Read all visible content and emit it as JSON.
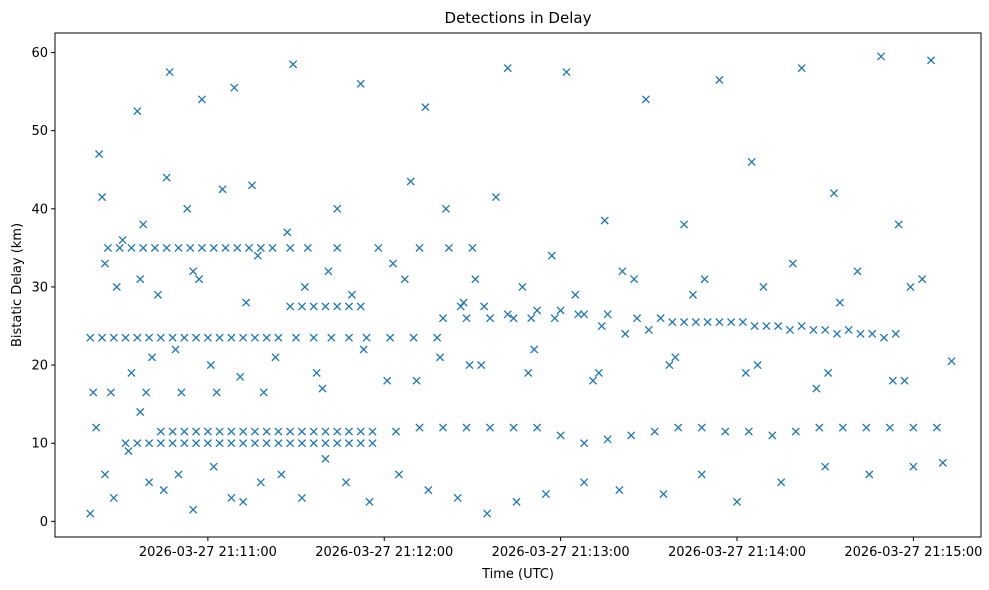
{
  "chart_data": {
    "type": "scatter",
    "title": "Detections in Delay",
    "xlabel": "Time (UTC)",
    "ylabel": "Bistatic Delay (km)",
    "x_axis_type": "time",
    "xlim": [
      "2026-03-27 21:10:08",
      "2026-03-27 21:15:23"
    ],
    "ylim": [
      -2,
      62.5
    ],
    "x_ticks": [
      "2026-03-27 21:11:00",
      "2026-03-27 21:12:00",
      "2026-03-27 21:13:00",
      "2026-03-27 21:14:00",
      "2026-03-27 21:15:00"
    ],
    "y_ticks": [
      0,
      10,
      20,
      30,
      40,
      50,
      60
    ],
    "grid": false,
    "legend": "none",
    "marker": "x",
    "color": "#1f77b4",
    "series": [
      {
        "x": [
          "2026-03-27 21:10:20",
          "2026-03-27 21:10:22",
          "2026-03-27 21:10:25",
          "2026-03-27 21:10:28",
          "2026-03-27 21:10:33",
          "2026-03-27 21:10:37",
          "2026-03-27 21:10:40",
          "2026-03-27 21:10:45",
          "2026-03-27 21:10:50",
          "2026-03-27 21:10:55",
          "2026-03-27 21:11:02",
          "2026-03-27 21:11:08",
          "2026-03-27 21:11:12",
          "2026-03-27 21:11:18",
          "2026-03-27 21:11:25",
          "2026-03-27 21:11:32",
          "2026-03-27 21:11:40",
          "2026-03-27 21:11:47",
          "2026-03-27 21:11:55",
          "2026-03-27 21:12:05",
          "2026-03-27 21:12:15",
          "2026-03-27 21:12:25",
          "2026-03-27 21:12:35",
          "2026-03-27 21:12:45",
          "2026-03-27 21:12:55",
          "2026-03-27 21:13:08",
          "2026-03-27 21:13:20",
          "2026-03-27 21:13:35",
          "2026-03-27 21:13:48",
          "2026-03-27 21:14:00",
          "2026-03-27 21:14:15",
          "2026-03-27 21:14:30",
          "2026-03-27 21:14:45",
          "2026-03-27 21:15:00",
          "2026-03-27 21:15:10",
          "2026-03-27 21:10:23",
          "2026-03-27 21:10:36",
          "2026-03-27 21:10:47",
          "2026-03-27 21:10:58",
          "2026-03-27 21:11:09",
          "2026-03-27 21:11:29",
          "2026-03-27 21:11:52",
          "2026-03-27 21:12:14",
          "2026-03-27 21:12:42",
          "2026-03-27 21:13:02",
          "2026-03-27 21:13:29",
          "2026-03-27 21:13:54",
          "2026-03-27 21:14:22",
          "2026-03-27 21:14:49",
          "2026-03-27 21:15:06",
          "2026-03-27 21:10:24",
          "2026-03-27 21:10:31",
          "2026-03-27 21:10:38",
          "2026-03-27 21:10:46",
          "2026-03-27 21:10:53",
          "2026-03-27 21:11:05",
          "2026-03-27 21:11:15",
          "2026-03-27 21:11:27",
          "2026-03-27 21:11:44",
          "2026-03-27 21:12:09",
          "2026-03-27 21:12:21",
          "2026-03-27 21:12:38",
          "2026-03-27 21:13:15",
          "2026-03-27 21:13:42",
          "2026-03-27 21:14:05",
          "2026-03-27 21:14:33",
          "2026-03-27 21:14:55",
          "2026-03-27 21:10:20",
          "2026-03-27 21:10:24",
          "2026-03-27 21:10:28",
          "2026-03-27 21:10:32",
          "2026-03-27 21:10:36",
          "2026-03-27 21:10:40",
          "2026-03-27 21:10:44",
          "2026-03-27 21:10:48",
          "2026-03-27 21:10:52",
          "2026-03-27 21:10:56",
          "2026-03-27 21:11:00",
          "2026-03-27 21:11:04",
          "2026-03-27 21:11:08",
          "2026-03-27 21:11:12",
          "2026-03-27 21:11:16",
          "2026-03-27 21:11:20",
          "2026-03-27 21:11:24",
          "2026-03-27 21:11:30",
          "2026-03-27 21:11:36",
          "2026-03-27 21:11:42",
          "2026-03-27 21:11:48",
          "2026-03-27 21:11:54",
          "2026-03-27 21:12:02",
          "2026-03-27 21:12:10",
          "2026-03-27 21:12:18",
          "2026-03-27 21:12:26",
          "2026-03-27 21:12:34",
          "2026-03-27 21:12:42",
          "2026-03-27 21:12:50",
          "2026-03-27 21:12:58",
          "2026-03-27 21:13:06",
          "2026-03-27 21:13:14",
          "2026-03-27 21:13:22",
          "2026-03-27 21:13:30",
          "2026-03-27 21:13:38",
          "2026-03-27 21:13:46",
          "2026-03-27 21:13:54",
          "2026-03-27 21:14:02",
          "2026-03-27 21:14:10",
          "2026-03-27 21:14:18",
          "2026-03-27 21:14:26",
          "2026-03-27 21:14:34",
          "2026-03-27 21:14:42",
          "2026-03-27 21:14:50",
          "2026-03-27 21:10:26",
          "2026-03-27 21:10:30",
          "2026-03-27 21:10:34",
          "2026-03-27 21:10:38",
          "2026-03-27 21:10:42",
          "2026-03-27 21:10:46",
          "2026-03-27 21:10:50",
          "2026-03-27 21:10:54",
          "2026-03-27 21:10:58",
          "2026-03-27 21:11:02",
          "2026-03-27 21:11:06",
          "2026-03-27 21:11:10",
          "2026-03-27 21:11:14",
          "2026-03-27 21:11:18",
          "2026-03-27 21:11:22",
          "2026-03-27 21:11:28",
          "2026-03-27 21:11:34",
          "2026-03-27 21:11:44",
          "2026-03-27 21:11:58",
          "2026-03-27 21:12:12",
          "2026-03-27 21:12:22",
          "2026-03-27 21:12:30",
          "2026-03-27 21:11:28",
          "2026-03-27 21:11:32",
          "2026-03-27 21:11:36",
          "2026-03-27 21:11:40",
          "2026-03-27 21:11:44",
          "2026-03-27 21:11:48",
          "2026-03-27 21:11:52",
          "2026-03-27 21:12:20",
          "2026-03-27 21:12:28",
          "2026-03-27 21:12:36",
          "2026-03-27 21:12:44",
          "2026-03-27 21:12:52",
          "2026-03-27 21:13:00",
          "2026-03-27 21:13:08",
          "2026-03-27 21:13:16",
          "2026-03-27 21:13:26",
          "2026-03-27 21:13:34",
          "2026-03-27 21:13:42",
          "2026-03-27 21:13:50",
          "2026-03-27 21:13:58",
          "2026-03-27 21:14:06",
          "2026-03-27 21:14:14",
          "2026-03-27 21:14:22",
          "2026-03-27 21:14:30",
          "2026-03-27 21:14:38",
          "2026-03-27 21:14:46",
          "2026-03-27 21:14:54",
          "2026-03-27 21:10:44",
          "2026-03-27 21:10:48",
          "2026-03-27 21:10:52",
          "2026-03-27 21:10:56",
          "2026-03-27 21:11:00",
          "2026-03-27 21:11:04",
          "2026-03-27 21:11:08",
          "2026-03-27 21:11:12",
          "2026-03-27 21:11:16",
          "2026-03-27 21:11:20",
          "2026-03-27 21:11:24",
          "2026-03-27 21:11:28",
          "2026-03-27 21:11:32",
          "2026-03-27 21:11:36",
          "2026-03-27 21:11:40",
          "2026-03-27 21:11:44",
          "2026-03-27 21:11:48",
          "2026-03-27 21:11:52",
          "2026-03-27 21:11:56",
          "2026-03-27 21:12:04",
          "2026-03-27 21:12:12",
          "2026-03-27 21:12:20",
          "2026-03-27 21:12:28",
          "2026-03-27 21:12:36",
          "2026-03-27 21:12:44",
          "2026-03-27 21:12:52",
          "2026-03-27 21:13:00",
          "2026-03-27 21:13:08",
          "2026-03-27 21:13:16",
          "2026-03-27 21:13:24",
          "2026-03-27 21:13:32",
          "2026-03-27 21:13:40",
          "2026-03-27 21:13:48",
          "2026-03-27 21:13:56",
          "2026-03-27 21:14:04",
          "2026-03-27 21:14:12",
          "2026-03-27 21:14:20",
          "2026-03-27 21:14:28",
          "2026-03-27 21:14:36",
          "2026-03-27 21:14:44",
          "2026-03-27 21:14:52",
          "2026-03-27 21:15:00",
          "2026-03-27 21:15:08",
          "2026-03-27 21:10:32",
          "2026-03-27 21:10:36",
          "2026-03-27 21:10:40",
          "2026-03-27 21:10:44",
          "2026-03-27 21:10:48",
          "2026-03-27 21:10:52",
          "2026-03-27 21:10:56",
          "2026-03-27 21:11:00",
          "2026-03-27 21:11:04",
          "2026-03-27 21:11:08",
          "2026-03-27 21:11:12",
          "2026-03-27 21:11:16",
          "2026-03-27 21:11:20",
          "2026-03-27 21:11:24",
          "2026-03-27 21:11:28",
          "2026-03-27 21:11:32",
          "2026-03-27 21:11:36",
          "2026-03-27 21:11:40",
          "2026-03-27 21:11:44",
          "2026-03-27 21:11:48",
          "2026-03-27 21:11:52",
          "2026-03-27 21:11:56",
          "2026-03-27 21:10:21",
          "2026-03-27 21:10:27",
          "2026-03-27 21:10:39",
          "2026-03-27 21:10:51",
          "2026-03-27 21:11:03",
          "2026-03-27 21:11:19",
          "2026-03-27 21:11:39",
          "2026-03-27 21:12:01",
          "2026-03-27 21:12:19",
          "2026-03-27 21:12:33",
          "2026-03-27 21:12:49",
          "2026-03-27 21:13:11",
          "2026-03-27 21:13:37",
          "2026-03-27 21:14:03",
          "2026-03-27 21:14:27",
          "2026-03-27 21:14:53",
          "2026-03-27 21:15:13",
          "2026-03-27 21:10:29",
          "2026-03-27 21:10:43",
          "2026-03-27 21:10:57",
          "2026-03-27 21:11:13",
          "2026-03-27 21:11:33",
          "2026-03-27 21:11:49",
          "2026-03-27 21:12:07",
          "2026-03-27 21:12:27",
          "2026-03-27 21:12:47",
          "2026-03-27 21:13:05",
          "2026-03-27 21:13:25",
          "2026-03-27 21:13:45",
          "2026-03-27 21:14:09",
          "2026-03-27 21:14:35",
          "2026-03-27 21:14:59",
          "2026-03-27 21:10:34",
          "2026-03-27 21:10:41",
          "2026-03-27 21:10:49",
          "2026-03-27 21:11:01",
          "2026-03-27 21:11:11",
          "2026-03-27 21:11:23",
          "2026-03-27 21:11:37",
          "2026-03-27 21:11:53",
          "2026-03-27 21:12:11",
          "2026-03-27 21:12:29",
          "2026-03-27 21:12:51",
          "2026-03-27 21:13:13",
          "2026-03-27 21:13:39",
          "2026-03-27 21:14:07",
          "2026-03-27 21:14:31",
          "2026-03-27 21:14:57",
          "2026-03-27 21:10:25",
          "2026-03-27 21:10:37",
          "2026-03-27 21:10:55",
          "2026-03-27 21:11:17",
          "2026-03-27 21:11:41",
          "2026-03-27 21:12:03",
          "2026-03-27 21:12:31",
          "2026-03-27 21:12:57",
          "2026-03-27 21:13:21",
          "2026-03-27 21:13:49",
          "2026-03-27 21:14:19",
          "2026-03-27 21:14:41",
          "2026-03-27 21:15:03"
        ],
        "y": [
          1,
          12,
          6,
          3,
          9,
          14,
          5,
          4,
          6,
          1.5,
          7,
          3,
          2.5,
          5,
          6,
          3,
          8,
          5,
          2.5,
          6,
          4,
          3,
          1,
          2.5,
          3.5,
          5,
          4,
          3.5,
          6,
          2.5,
          5,
          7,
          6,
          7,
          7.5,
          47,
          52.5,
          57.5,
          54,
          55.5,
          58.5,
          56,
          53,
          58,
          57.5,
          54,
          56.5,
          58,
          59.5,
          59,
          41.5,
          36,
          38,
          44,
          40,
          42.5,
          43,
          37,
          40,
          43.5,
          40,
          41.5,
          38.5,
          38,
          46,
          42,
          38,
          23.5,
          23.5,
          23.5,
          23.5,
          23.5,
          23.5,
          23.5,
          23.5,
          23.5,
          23.5,
          23.5,
          23.5,
          23.5,
          23.5,
          23.5,
          23.5,
          23.5,
          23.5,
          23.5,
          23.5,
          23.5,
          23.5,
          23.5,
          23.5,
          23.5,
          27.5,
          27.5,
          26.5,
          26,
          26,
          26.5,
          25,
          24,
          24.5,
          25.5,
          25.5,
          25.5,
          25.5,
          25,
          24.5,
          24.5,
          24,
          24,
          23.5,
          35,
          35,
          35,
          35,
          35,
          35,
          35,
          35,
          35,
          35,
          35,
          35,
          35,
          35,
          35,
          35,
          35,
          35,
          35,
          35,
          35,
          35,
          27.5,
          27.5,
          27.5,
          27.5,
          27.5,
          27.5,
          27.5,
          26,
          26,
          26,
          26,
          27,
          27,
          26.5,
          26.5,
          26,
          26,
          25.5,
          25.5,
          25.5,
          25,
          25,
          25,
          24.5,
          24.5,
          24,
          24,
          11.5,
          11.5,
          11.5,
          11.5,
          11.5,
          11.5,
          11.5,
          11.5,
          11.5,
          11.5,
          11.5,
          11.5,
          11.5,
          11.5,
          11.5,
          11.5,
          11.5,
          11.5,
          11.5,
          11.5,
          12,
          12,
          12,
          12,
          12,
          12,
          11,
          10,
          10.5,
          11,
          11.5,
          12,
          12,
          11.5,
          11.5,
          11,
          11.5,
          12,
          12,
          12,
          12,
          12,
          12,
          10,
          10,
          10,
          10,
          10,
          10,
          10,
          10,
          10,
          10,
          10,
          10,
          10,
          10,
          10,
          10,
          10,
          10,
          10,
          10,
          10,
          10,
          16.5,
          16.5,
          16.5,
          16.5,
          16.5,
          16.5,
          17,
          18,
          21,
          20,
          19,
          18,
          20,
          19,
          17,
          18,
          20.5,
          30,
          29,
          31,
          28,
          30,
          29,
          31,
          28,
          30,
          29,
          31,
          29,
          30,
          28,
          30,
          19,
          21,
          22,
          20,
          18.5,
          21,
          19,
          22,
          18,
          20,
          22,
          19,
          21,
          20,
          19,
          18,
          33,
          31,
          32,
          34,
          32,
          33,
          31,
          34,
          32,
          31,
          33,
          32,
          31
        ]
      }
    ]
  }
}
